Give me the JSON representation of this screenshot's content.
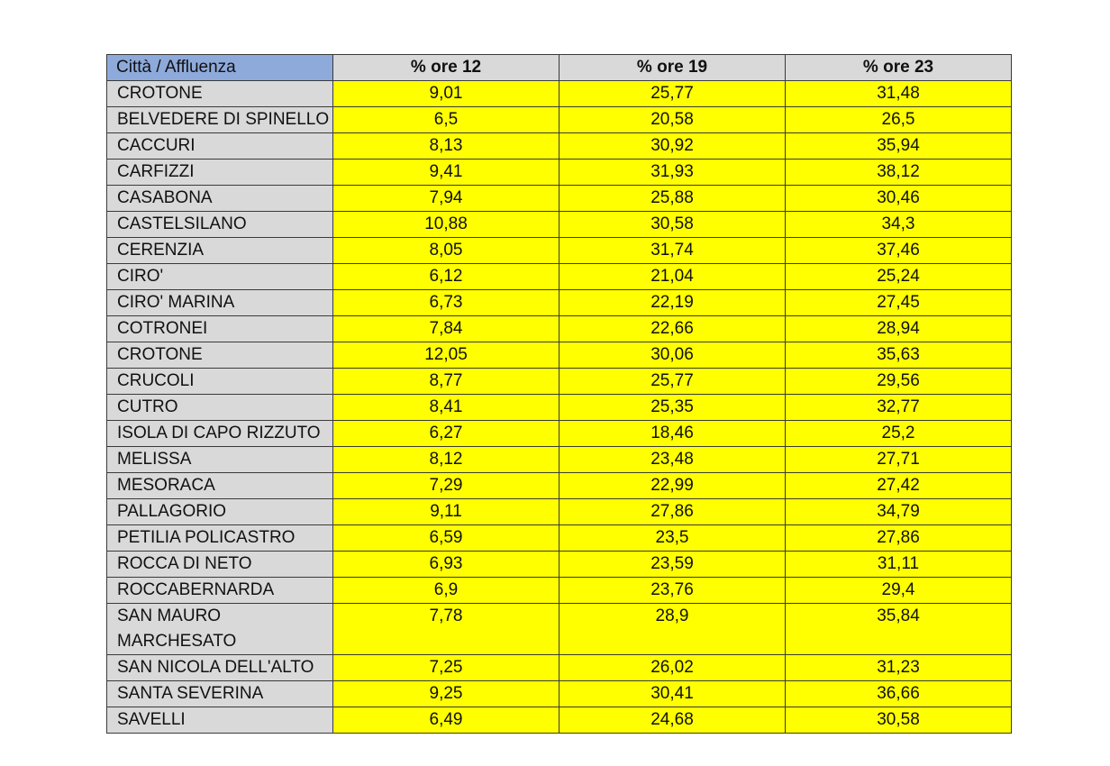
{
  "table": {
    "headers": [
      "Città / Affluenza",
      "% ore 12",
      "% ore 19",
      "% ore 23"
    ],
    "rows": [
      [
        "CROTONE",
        "9,01",
        "25,77",
        "31,48"
      ],
      [
        "BELVEDERE DI SPINELLO",
        "6,5",
        "20,58",
        "26,5"
      ],
      [
        "CACCURI",
        "8,13",
        "30,92",
        "35,94"
      ],
      [
        "CARFIZZI",
        "9,41",
        "31,93",
        "38,12"
      ],
      [
        "CASABONA",
        "7,94",
        "25,88",
        "30,46"
      ],
      [
        "CASTELSILANO",
        "10,88",
        "30,58",
        "34,3"
      ],
      [
        "CERENZIA",
        "8,05",
        "31,74",
        "37,46"
      ],
      [
        "CIRO'",
        "6,12",
        "21,04",
        "25,24"
      ],
      [
        "CIRO' MARINA",
        "6,73",
        "22,19",
        "27,45"
      ],
      [
        "COTRONEI",
        "7,84",
        "22,66",
        "28,94"
      ],
      [
        "CROTONE",
        "12,05",
        "30,06",
        "35,63"
      ],
      [
        "CRUCOLI",
        "8,77",
        "25,77",
        "29,56"
      ],
      [
        "CUTRO",
        "8,41",
        "25,35",
        "32,77"
      ],
      [
        "ISOLA DI CAPO RIZZUTO",
        "6,27",
        "18,46",
        "25,2"
      ],
      [
        "MELISSA",
        "8,12",
        "23,48",
        "27,71"
      ],
      [
        "MESORACA",
        "7,29",
        "22,99",
        "27,42"
      ],
      [
        "PALLAGORIO",
        "9,11",
        "27,86",
        "34,79"
      ],
      [
        "PETILIA POLICASTRO",
        "6,59",
        "23,5",
        "27,86"
      ],
      [
        "ROCCA DI NETO",
        "6,93",
        "23,59",
        "31,11"
      ],
      [
        "ROCCABERNARDA",
        "6,9",
        "23,76",
        "29,4"
      ],
      [
        "SAN MAURO MARCHESATO",
        "7,78",
        "28,9",
        "35,84"
      ],
      [
        "SAN NICOLA DELL'ALTO",
        "7,25",
        "26,02",
        "31,23"
      ],
      [
        "SANTA SEVERINA",
        "9,25",
        "30,41",
        "36,66"
      ],
      [
        "SAVELLI",
        "6,49",
        "24,68",
        "30,58"
      ]
    ]
  },
  "colors": {
    "header_first": "#8eaadb",
    "header": "#d9d9d9",
    "city": "#d9d9d9",
    "value": "#ffff00"
  }
}
